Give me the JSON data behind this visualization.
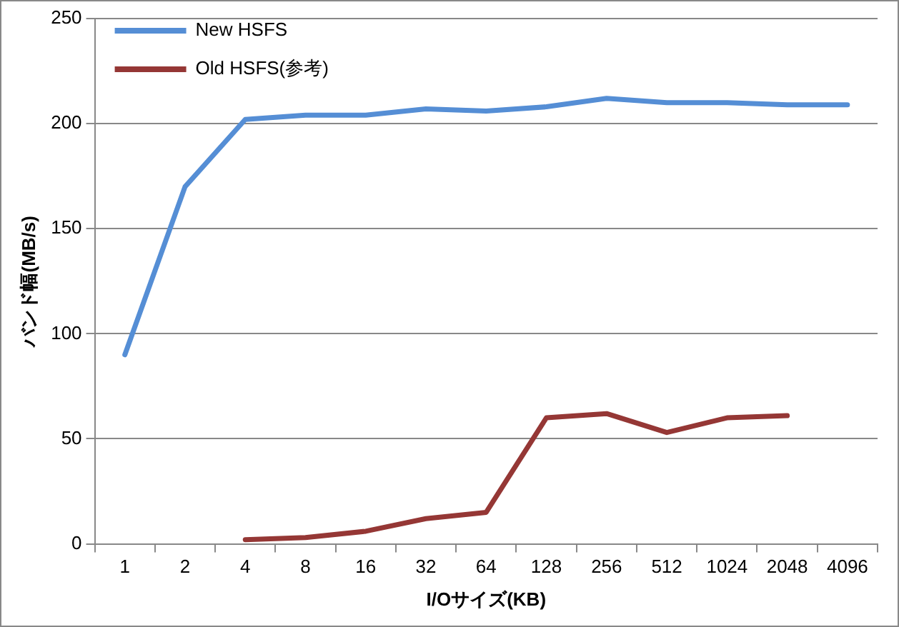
{
  "chart_data": {
    "type": "line",
    "xlabel": "I/Oサイズ(KB)",
    "ylabel": "バンド幅(MB/s)",
    "categories": [
      "1",
      "2",
      "4",
      "8",
      "16",
      "32",
      "64",
      "128",
      "256",
      "512",
      "1024",
      "2048",
      "4096"
    ],
    "series": [
      {
        "name": "New HSFS",
        "color": "#558ed5",
        "values": [
          90,
          170,
          202,
          204,
          204,
          207,
          206,
          208,
          212,
          210,
          210,
          209,
          209
        ]
      },
      {
        "name": "Old HSFS(参考)",
        "color": "#953735",
        "values": [
          null,
          null,
          2,
          3,
          6,
          12,
          15,
          60,
          62,
          53,
          60,
          61,
          null
        ]
      }
    ],
    "ylim": [
      0,
      250
    ],
    "yticks": [
      0,
      50,
      100,
      150,
      200,
      250
    ],
    "grid": "y",
    "legend": "top left",
    "marker": "none",
    "line_style": "solid"
  }
}
